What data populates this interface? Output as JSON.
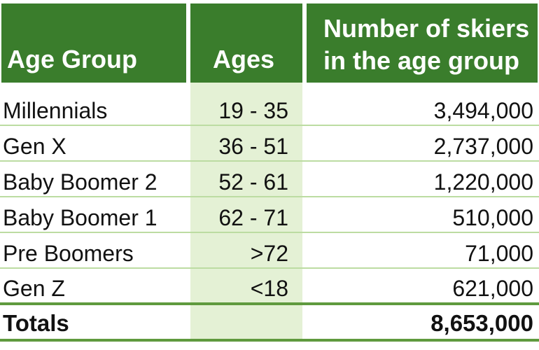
{
  "headers": {
    "age_group": "Age Group",
    "ages": "Ages",
    "skiers_line1": "Number of skiers",
    "skiers_line2": "in the age group"
  },
  "rows": [
    {
      "group": "Millennials",
      "ages": "19 - 35",
      "skiers": "3,494,000"
    },
    {
      "group": "Gen X",
      "ages": "36 - 51",
      "skiers": "2,737,000"
    },
    {
      "group": "Baby Boomer 2",
      "ages": "52 - 61",
      "skiers": "1,220,000"
    },
    {
      "group": "Baby Boomer 1",
      "ages": "62 - 71",
      "skiers": "510,000"
    },
    {
      "group": "Pre Boomers",
      "ages": ">72",
      "skiers": "71,000"
    },
    {
      "group": "Gen Z",
      "ages": "<18",
      "skiers": "621,000"
    }
  ],
  "total": {
    "label": "Totals",
    "skiers": "8,653,000"
  },
  "colors": {
    "header_bg": "#3a7d2c",
    "ages_column_bg": "#e4f1d5",
    "row_line": "#bcdca2",
    "total_line": "#5f9a3e"
  }
}
